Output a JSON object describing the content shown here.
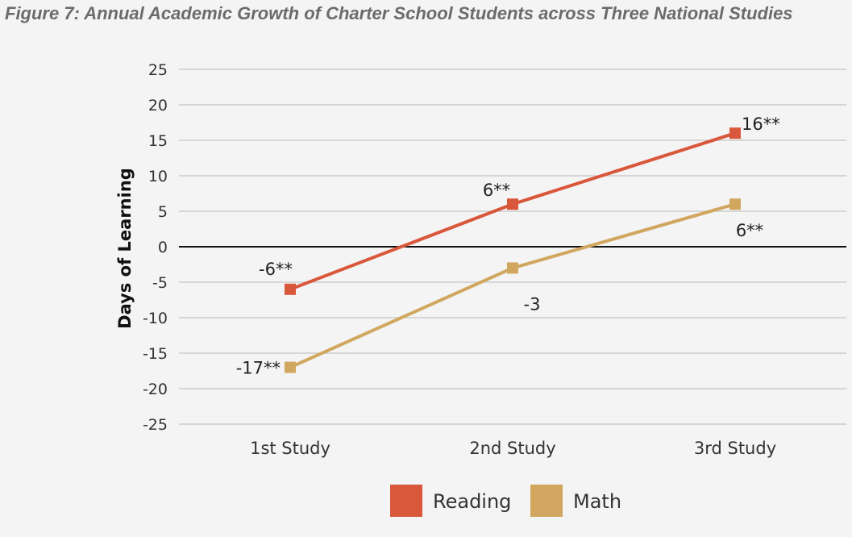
{
  "chart_data": {
    "type": "line",
    "title": "Figure 7: Annual Academic Growth of Charter School Students across Three National Studies",
    "xlabel": "",
    "ylabel": "Days of Learning",
    "categories": [
      "1st Study",
      "2nd Study",
      "3rd Study"
    ],
    "ylim": [
      -25,
      25
    ],
    "yticks": [
      25,
      20,
      15,
      10,
      5,
      0,
      -5,
      -10,
      -15,
      -20,
      -25
    ],
    "grid": true,
    "legend": "bottom",
    "series": [
      {
        "name": "Reading",
        "color": "#d9573a",
        "values": [
          -6,
          6,
          16
        ],
        "labels": [
          "-6**",
          "6**",
          "16**"
        ]
      },
      {
        "name": "Math",
        "color": "#d1a75f",
        "values": [
          -17,
          -3,
          6
        ],
        "labels": [
          "-17**",
          "-3",
          "6**"
        ]
      }
    ]
  }
}
